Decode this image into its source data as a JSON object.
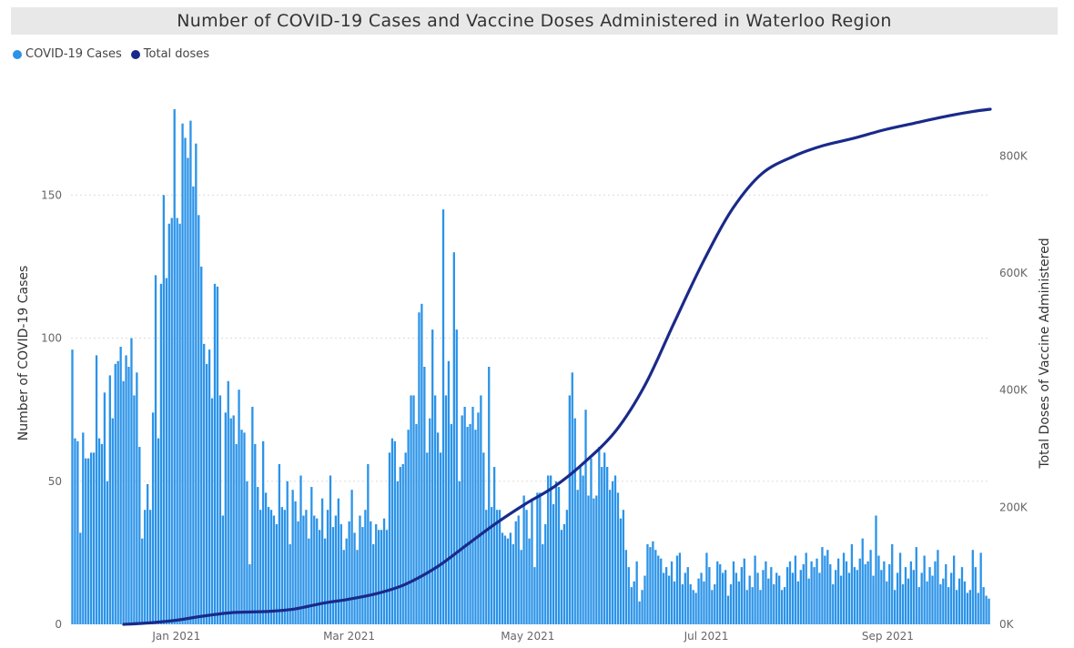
{
  "chart_data": {
    "type": "bar",
    "title": "Number of COVID-19 Cases and Vaccine Doses Administered in Waterloo Region",
    "legend": {
      "placement": "top-left"
    },
    "ylabel": "Number of COVID-19 Cases",
    "ylabel_right": "Total Doses of Vaccine Administered",
    "ylim": [
      0,
      180
    ],
    "yticks": [
      0,
      50,
      100,
      150
    ],
    "ylim_right": [
      0,
      880000
    ],
    "yticks_right": [
      {
        "value": 0,
        "label": "0K"
      },
      {
        "value": 200000,
        "label": "200K"
      },
      {
        "value": 400000,
        "label": "400K"
      },
      {
        "value": 600000,
        "label": "600K"
      },
      {
        "value": 800000,
        "label": "800K"
      }
    ],
    "x_start": "2020-11-26",
    "x_end": "2021-10-06",
    "xticks": [
      {
        "date": "2021-01-01",
        "label": "Jan 2021"
      },
      {
        "date": "2021-03-01",
        "label": "Mar 2021"
      },
      {
        "date": "2021-05-01",
        "label": "May 2021"
      },
      {
        "date": "2021-07-01",
        "label": "Jul 2021"
      },
      {
        "date": "2021-09-01",
        "label": "Sep 2021"
      }
    ],
    "grid": true,
    "series": [
      {
        "name": "COVID-19 Cases",
        "type": "bar",
        "axis": "left",
        "color": "#2b93e8",
        "values": [
          96,
          65,
          64,
          32,
          67,
          58,
          58,
          60,
          60,
          94,
          65,
          63,
          81,
          50,
          87,
          72,
          91,
          92,
          97,
          85,
          94,
          90,
          100,
          80,
          88,
          62,
          30,
          40,
          49,
          40,
          74,
          122,
          65,
          119,
          150,
          121,
          140,
          142,
          180,
          142,
          140,
          175,
          170,
          163,
          176,
          153,
          168,
          143,
          125,
          98,
          91,
          96,
          79,
          119,
          118,
          80,
          38,
          74,
          85,
          72,
          73,
          63,
          82,
          68,
          67,
          50,
          21,
          76,
          63,
          48,
          40,
          64,
          46,
          41,
          40,
          38,
          35,
          56,
          41,
          40,
          50,
          28,
          47,
          43,
          36,
          52,
          38,
          40,
          30,
          48,
          38,
          37,
          33,
          44,
          30,
          40,
          52,
          34,
          38,
          44,
          35,
          26,
          30,
          36,
          47,
          32,
          26,
          38,
          34,
          40,
          56,
          36,
          28,
          35,
          33,
          33,
          37,
          33,
          60,
          65,
          64,
          50,
          55,
          56,
          60,
          68,
          80,
          80,
          70,
          109,
          112,
          90,
          60,
          72,
          103,
          80,
          67,
          60,
          145,
          80,
          92,
          70,
          130,
          103,
          50,
          73,
          76,
          69,
          70,
          76,
          68,
          74,
          80,
          60,
          40,
          90,
          41,
          55,
          40,
          40,
          32,
          31,
          30,
          32,
          28,
          36,
          38,
          26,
          45,
          40,
          30,
          44,
          20,
          46,
          46,
          28,
          35,
          52,
          52,
          42,
          50,
          48,
          33,
          35,
          40,
          80,
          88,
          72,
          47,
          55,
          52,
          75,
          45,
          58,
          44,
          45,
          62,
          55,
          60,
          55,
          47,
          50,
          52,
          46,
          37,
          40,
          26,
          20,
          13,
          15,
          22,
          8,
          12,
          17,
          28,
          27,
          29,
          26,
          24,
          23,
          18,
          20,
          17,
          22,
          15,
          24,
          25,
          14,
          18,
          20,
          14,
          12,
          11,
          16,
          18,
          15,
          25,
          20,
          12,
          14,
          22,
          21,
          18,
          19,
          10,
          14,
          22,
          18,
          15,
          20,
          23,
          12,
          17,
          13,
          24,
          18,
          12,
          19,
          22,
          16,
          20,
          14,
          18,
          17,
          12,
          13,
          20,
          22,
          18,
          24,
          15,
          19,
          21,
          25,
          16,
          22,
          20,
          23,
          18,
          27,
          24,
          26,
          21,
          14,
          19,
          23,
          17,
          25,
          22,
          18,
          28,
          20,
          19,
          23,
          30,
          21,
          22,
          26,
          17,
          38,
          24,
          19,
          22,
          15,
          21,
          28,
          12,
          18,
          25,
          14,
          20,
          16,
          22,
          19,
          27,
          13,
          18,
          24,
          15,
          20,
          17,
          22,
          26,
          14,
          16,
          21,
          13,
          18,
          24,
          12,
          16,
          20,
          15,
          11,
          12,
          26,
          20,
          11,
          25,
          13,
          10,
          9
        ]
      },
      {
        "name": "Total doses",
        "type": "line",
        "axis": "right",
        "color": "#1a2a8a",
        "points": [
          [
            "2020-12-14",
            0
          ],
          [
            "2020-12-24",
            3000
          ],
          [
            "2021-01-01",
            7000
          ],
          [
            "2021-01-10",
            14000
          ],
          [
            "2021-01-20",
            20000
          ],
          [
            "2021-02-01",
            22000
          ],
          [
            "2021-02-10",
            26000
          ],
          [
            "2021-02-20",
            36000
          ],
          [
            "2021-03-01",
            43000
          ],
          [
            "2021-03-10",
            52000
          ],
          [
            "2021-03-20",
            68000
          ],
          [
            "2021-03-31",
            98000
          ],
          [
            "2021-04-10",
            135000
          ],
          [
            "2021-04-20",
            172000
          ],
          [
            "2021-04-30",
            205000
          ],
          [
            "2021-05-10",
            235000
          ],
          [
            "2021-05-20",
            275000
          ],
          [
            "2021-05-31",
            330000
          ],
          [
            "2021-06-10",
            408000
          ],
          [
            "2021-06-20",
            515000
          ],
          [
            "2021-06-30",
            620000
          ],
          [
            "2021-07-10",
            710000
          ],
          [
            "2021-07-20",
            770000
          ],
          [
            "2021-07-31",
            800000
          ],
          [
            "2021-08-10",
            818000
          ],
          [
            "2021-08-20",
            830000
          ],
          [
            "2021-08-31",
            845000
          ],
          [
            "2021-09-10",
            856000
          ],
          [
            "2021-09-20",
            867000
          ],
          [
            "2021-09-30",
            876000
          ],
          [
            "2021-10-06",
            880000
          ]
        ]
      }
    ]
  }
}
